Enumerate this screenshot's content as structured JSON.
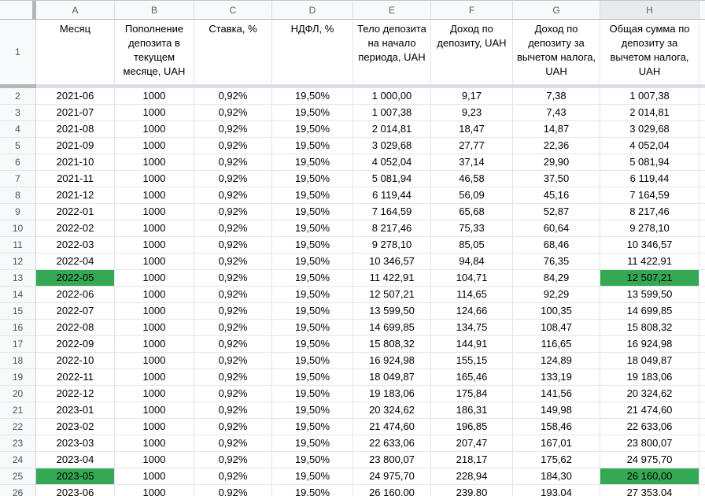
{
  "app": {
    "type": "spreadsheet-grid",
    "selected_column": "H"
  },
  "grid": {
    "column_headers": [
      "A",
      "B",
      "C",
      "D",
      "E",
      "F",
      "G",
      "H"
    ],
    "header_row_number": "1",
    "colors": {
      "highlight_green": "#34a853",
      "column_header_bg": "#f8f9fa",
      "column_header_selected_bg": "#e8eaed",
      "row_gutter_bg": "#f8f9fa",
      "freeze_handle_gray": "#b3b6b9",
      "freeze_line_blue_gray": "#d9dee8",
      "cell_bg": "#ffffff",
      "gridline": "#e2e3e4",
      "text": "#000000"
    }
  },
  "table": {
    "column_titles": [
      "Месяц",
      "Пополнение депозита в текущем месяце, UAH",
      "Ставка, %",
      "НДФЛ, %",
      "Тело депозита на начало периода, UAH",
      "Доход по депозиту, UAH",
      "Доход по депозиту за вычетом налога, UAH",
      "Общая сумма по депозиту за вычетом налога, UAH"
    ],
    "highlighted_cells": [
      "A13",
      "H13",
      "A25",
      "H25"
    ],
    "rows": [
      {
        "n": "2",
        "cells": [
          "2021-06",
          "1000",
          "0,92%",
          "19,50%",
          "1 000,00",
          "9,17",
          "7,38",
          "1 007,38"
        ]
      },
      {
        "n": "3",
        "cells": [
          "2021-07",
          "1000",
          "0,92%",
          "19,50%",
          "1 007,38",
          "9,23",
          "7,43",
          "2 014,81"
        ]
      },
      {
        "n": "4",
        "cells": [
          "2021-08",
          "1000",
          "0,92%",
          "19,50%",
          "2 014,81",
          "18,47",
          "14,87",
          "3 029,68"
        ]
      },
      {
        "n": "5",
        "cells": [
          "2021-09",
          "1000",
          "0,92%",
          "19,50%",
          "3 029,68",
          "27,77",
          "22,36",
          "4 052,04"
        ]
      },
      {
        "n": "6",
        "cells": [
          "2021-10",
          "1000",
          "0,92%",
          "19,50%",
          "4 052,04",
          "37,14",
          "29,90",
          "5 081,94"
        ]
      },
      {
        "n": "7",
        "cells": [
          "2021-11",
          "1000",
          "0,92%",
          "19,50%",
          "5 081,94",
          "46,58",
          "37,50",
          "6 119,44"
        ]
      },
      {
        "n": "8",
        "cells": [
          "2021-12",
          "1000",
          "0,92%",
          "19,50%",
          "6 119,44",
          "56,09",
          "45,16",
          "7 164,59"
        ]
      },
      {
        "n": "9",
        "cells": [
          "2022-01",
          "1000",
          "0,92%",
          "19,50%",
          "7 164,59",
          "65,68",
          "52,87",
          "8 217,46"
        ]
      },
      {
        "n": "10",
        "cells": [
          "2022-02",
          "1000",
          "0,92%",
          "19,50%",
          "8 217,46",
          "75,33",
          "60,64",
          "9 278,10"
        ]
      },
      {
        "n": "11",
        "cells": [
          "2022-03",
          "1000",
          "0,92%",
          "19,50%",
          "9 278,10",
          "85,05",
          "68,46",
          "10 346,57"
        ]
      },
      {
        "n": "12",
        "cells": [
          "2022-04",
          "1000",
          "0,92%",
          "19,50%",
          "10 346,57",
          "94,84",
          "76,35",
          "11 422,91"
        ]
      },
      {
        "n": "13",
        "cells": [
          "2022-05",
          "1000",
          "0,92%",
          "19,50%",
          "11 422,91",
          "104,71",
          "84,29",
          "12 507,21"
        ]
      },
      {
        "n": "14",
        "cells": [
          "2022-06",
          "1000",
          "0,92%",
          "19,50%",
          "12 507,21",
          "114,65",
          "92,29",
          "13 599,50"
        ]
      },
      {
        "n": "15",
        "cells": [
          "2022-07",
          "1000",
          "0,92%",
          "19,50%",
          "13 599,50",
          "124,66",
          "100,35",
          "14 699,85"
        ]
      },
      {
        "n": "16",
        "cells": [
          "2022-08",
          "1000",
          "0,92%",
          "19,50%",
          "14 699,85",
          "134,75",
          "108,47",
          "15 808,32"
        ]
      },
      {
        "n": "17",
        "cells": [
          "2022-09",
          "1000",
          "0,92%",
          "19,50%",
          "15 808,32",
          "144,91",
          "116,65",
          "16 924,98"
        ]
      },
      {
        "n": "18",
        "cells": [
          "2022-10",
          "1000",
          "0,92%",
          "19,50%",
          "16 924,98",
          "155,15",
          "124,89",
          "18 049,87"
        ]
      },
      {
        "n": "19",
        "cells": [
          "2022-11",
          "1000",
          "0,92%",
          "19,50%",
          "18 049,87",
          "165,46",
          "133,19",
          "19 183,06"
        ]
      },
      {
        "n": "20",
        "cells": [
          "2022-12",
          "1000",
          "0,92%",
          "19,50%",
          "19 183,06",
          "175,84",
          "141,56",
          "20 324,62"
        ]
      },
      {
        "n": "21",
        "cells": [
          "2023-01",
          "1000",
          "0,92%",
          "19,50%",
          "20 324,62",
          "186,31",
          "149,98",
          "21 474,60"
        ]
      },
      {
        "n": "22",
        "cells": [
          "2023-02",
          "1000",
          "0,92%",
          "19,50%",
          "21 474,60",
          "196,85",
          "158,46",
          "22 633,06"
        ]
      },
      {
        "n": "23",
        "cells": [
          "2023-03",
          "1000",
          "0,92%",
          "19,50%",
          "22 633,06",
          "207,47",
          "167,01",
          "23 800,07"
        ]
      },
      {
        "n": "24",
        "cells": [
          "2023-04",
          "1000",
          "0,92%",
          "19,50%",
          "23 800,07",
          "218,17",
          "175,62",
          "24 975,70"
        ]
      },
      {
        "n": "25",
        "cells": [
          "2023-05",
          "1000",
          "0,92%",
          "19,50%",
          "24 975,70",
          "228,94",
          "184,30",
          "26 160,00"
        ]
      },
      {
        "n": "26",
        "cells": [
          "2023-06",
          "1000",
          "0,92%",
          "19,50%",
          "26 160,00",
          "239,80",
          "193,04",
          "27 353,04"
        ]
      }
    ]
  }
}
